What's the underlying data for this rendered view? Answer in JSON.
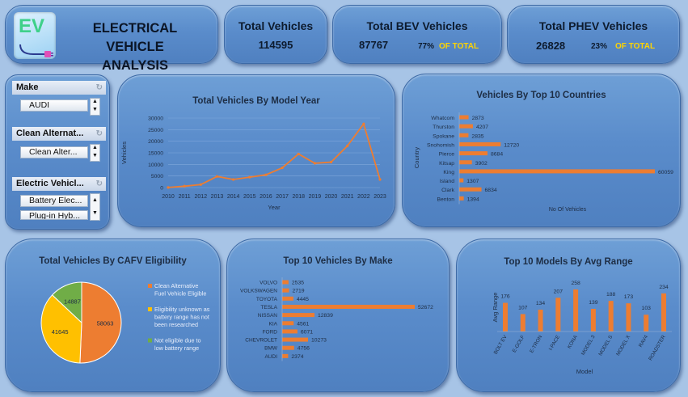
{
  "header": {
    "logo_text": "EV",
    "title_line1": "ELECTRICAL VEHICLE",
    "title_line2": "ANALYSIS"
  },
  "kpis": {
    "total": {
      "label": "Total Vehicles",
      "value": "114595"
    },
    "bev": {
      "label": "Total BEV Vehicles",
      "value": "87767",
      "pct": "77%",
      "of": "OF TOTAL"
    },
    "phev": {
      "label": "Total PHEV Vehicles",
      "value": "26828",
      "pct": "23%",
      "of": "OF TOTAL"
    }
  },
  "slicers": {
    "make": {
      "label": "Make",
      "items": [
        "AUDI"
      ]
    },
    "clean": {
      "label": "Clean Alternat...",
      "items": [
        "Clean Alter..."
      ]
    },
    "electric": {
      "label": "Electric Vehicl...",
      "items": [
        "Battery Elec...",
        "Plug-in Hyb..."
      ]
    }
  },
  "colors": {
    "accent": "#ed7d31",
    "gold": "#ffc000",
    "green": "#70ad47",
    "kpi_highlight": "#ffd400"
  },
  "chart_data": [
    {
      "id": "model_year",
      "type": "line",
      "title": "Total Vehicles By Model Year",
      "xlabel": "Year",
      "ylabel": "Vehicles",
      "x": [
        "2010",
        "2011",
        "2012",
        "2013",
        "2014",
        "2015",
        "2016",
        "2017",
        "2018",
        "2019",
        "2020",
        "2021",
        "2022",
        "2023"
      ],
      "values": [
        50,
        600,
        1300,
        4800,
        3500,
        4500,
        5500,
        8500,
        14500,
        10500,
        11000,
        18000,
        27500,
        3500
      ],
      "yticks": [
        "0",
        "5000",
        "10000",
        "15000",
        "20000",
        "25000",
        "30000"
      ],
      "ylim": [
        0,
        30000
      ]
    },
    {
      "id": "countries",
      "type": "bar",
      "title": "Vehicles By Top 10 Countries",
      "xlabel": "No Of Vehicles",
      "ylabel": "Country",
      "categories": [
        "Whatcom",
        "Thurston",
        "Spokane",
        "Snohomish",
        "Pierce",
        "Kitsap",
        "King",
        "Island",
        "Clark",
        "Benton"
      ],
      "values": [
        2873,
        4207,
        2835,
        12720,
        8684,
        3902,
        60059,
        1307,
        6834,
        1394
      ]
    },
    {
      "id": "cafv",
      "type": "pie",
      "title": "Total Vehicles By CAFV Eligibility",
      "categories": [
        "Clean Alternative Fuel Vehicle Eligible",
        "Eligibility unknown as battery range has not been researched",
        "Not eligible due to low battery range"
      ],
      "values": [
        58063,
        41645,
        14887
      ],
      "legend": [
        [
          "Clean Alternative",
          "Fuel Vehicle Eligible"
        ],
        [
          "Eligibility unknown as",
          "battery range has not",
          "been researched"
        ],
        [
          "Not eligible due to",
          "low battery range"
        ]
      ]
    },
    {
      "id": "make",
      "type": "bar",
      "title": "Top 10 Vehicles By Make",
      "categories": [
        "VOLVO",
        "VOLKSWAGEN",
        "TOYOTA",
        "TESLA",
        "NISSAN",
        "KIA",
        "FORD",
        "CHEVROLET",
        "BMW",
        "AUDI"
      ],
      "values": [
        2535,
        2719,
        4445,
        52672,
        12839,
        4561,
        6071,
        10273,
        4756,
        2374
      ]
    },
    {
      "id": "range",
      "type": "bar",
      "title": "Top 10 Models By Avg Range",
      "xlabel": "Model",
      "ylabel": "Avg Range",
      "categories": [
        "BOLT EV",
        "E-GOLF",
        "E-TRON",
        "I-PACE",
        "KONA",
        "MODEL 3",
        "MODEL S",
        "MODEL X",
        "RAV4",
        "ROADSTER"
      ],
      "values": [
        176,
        107,
        134,
        207,
        258,
        139,
        188,
        173,
        103,
        234
      ]
    }
  ]
}
